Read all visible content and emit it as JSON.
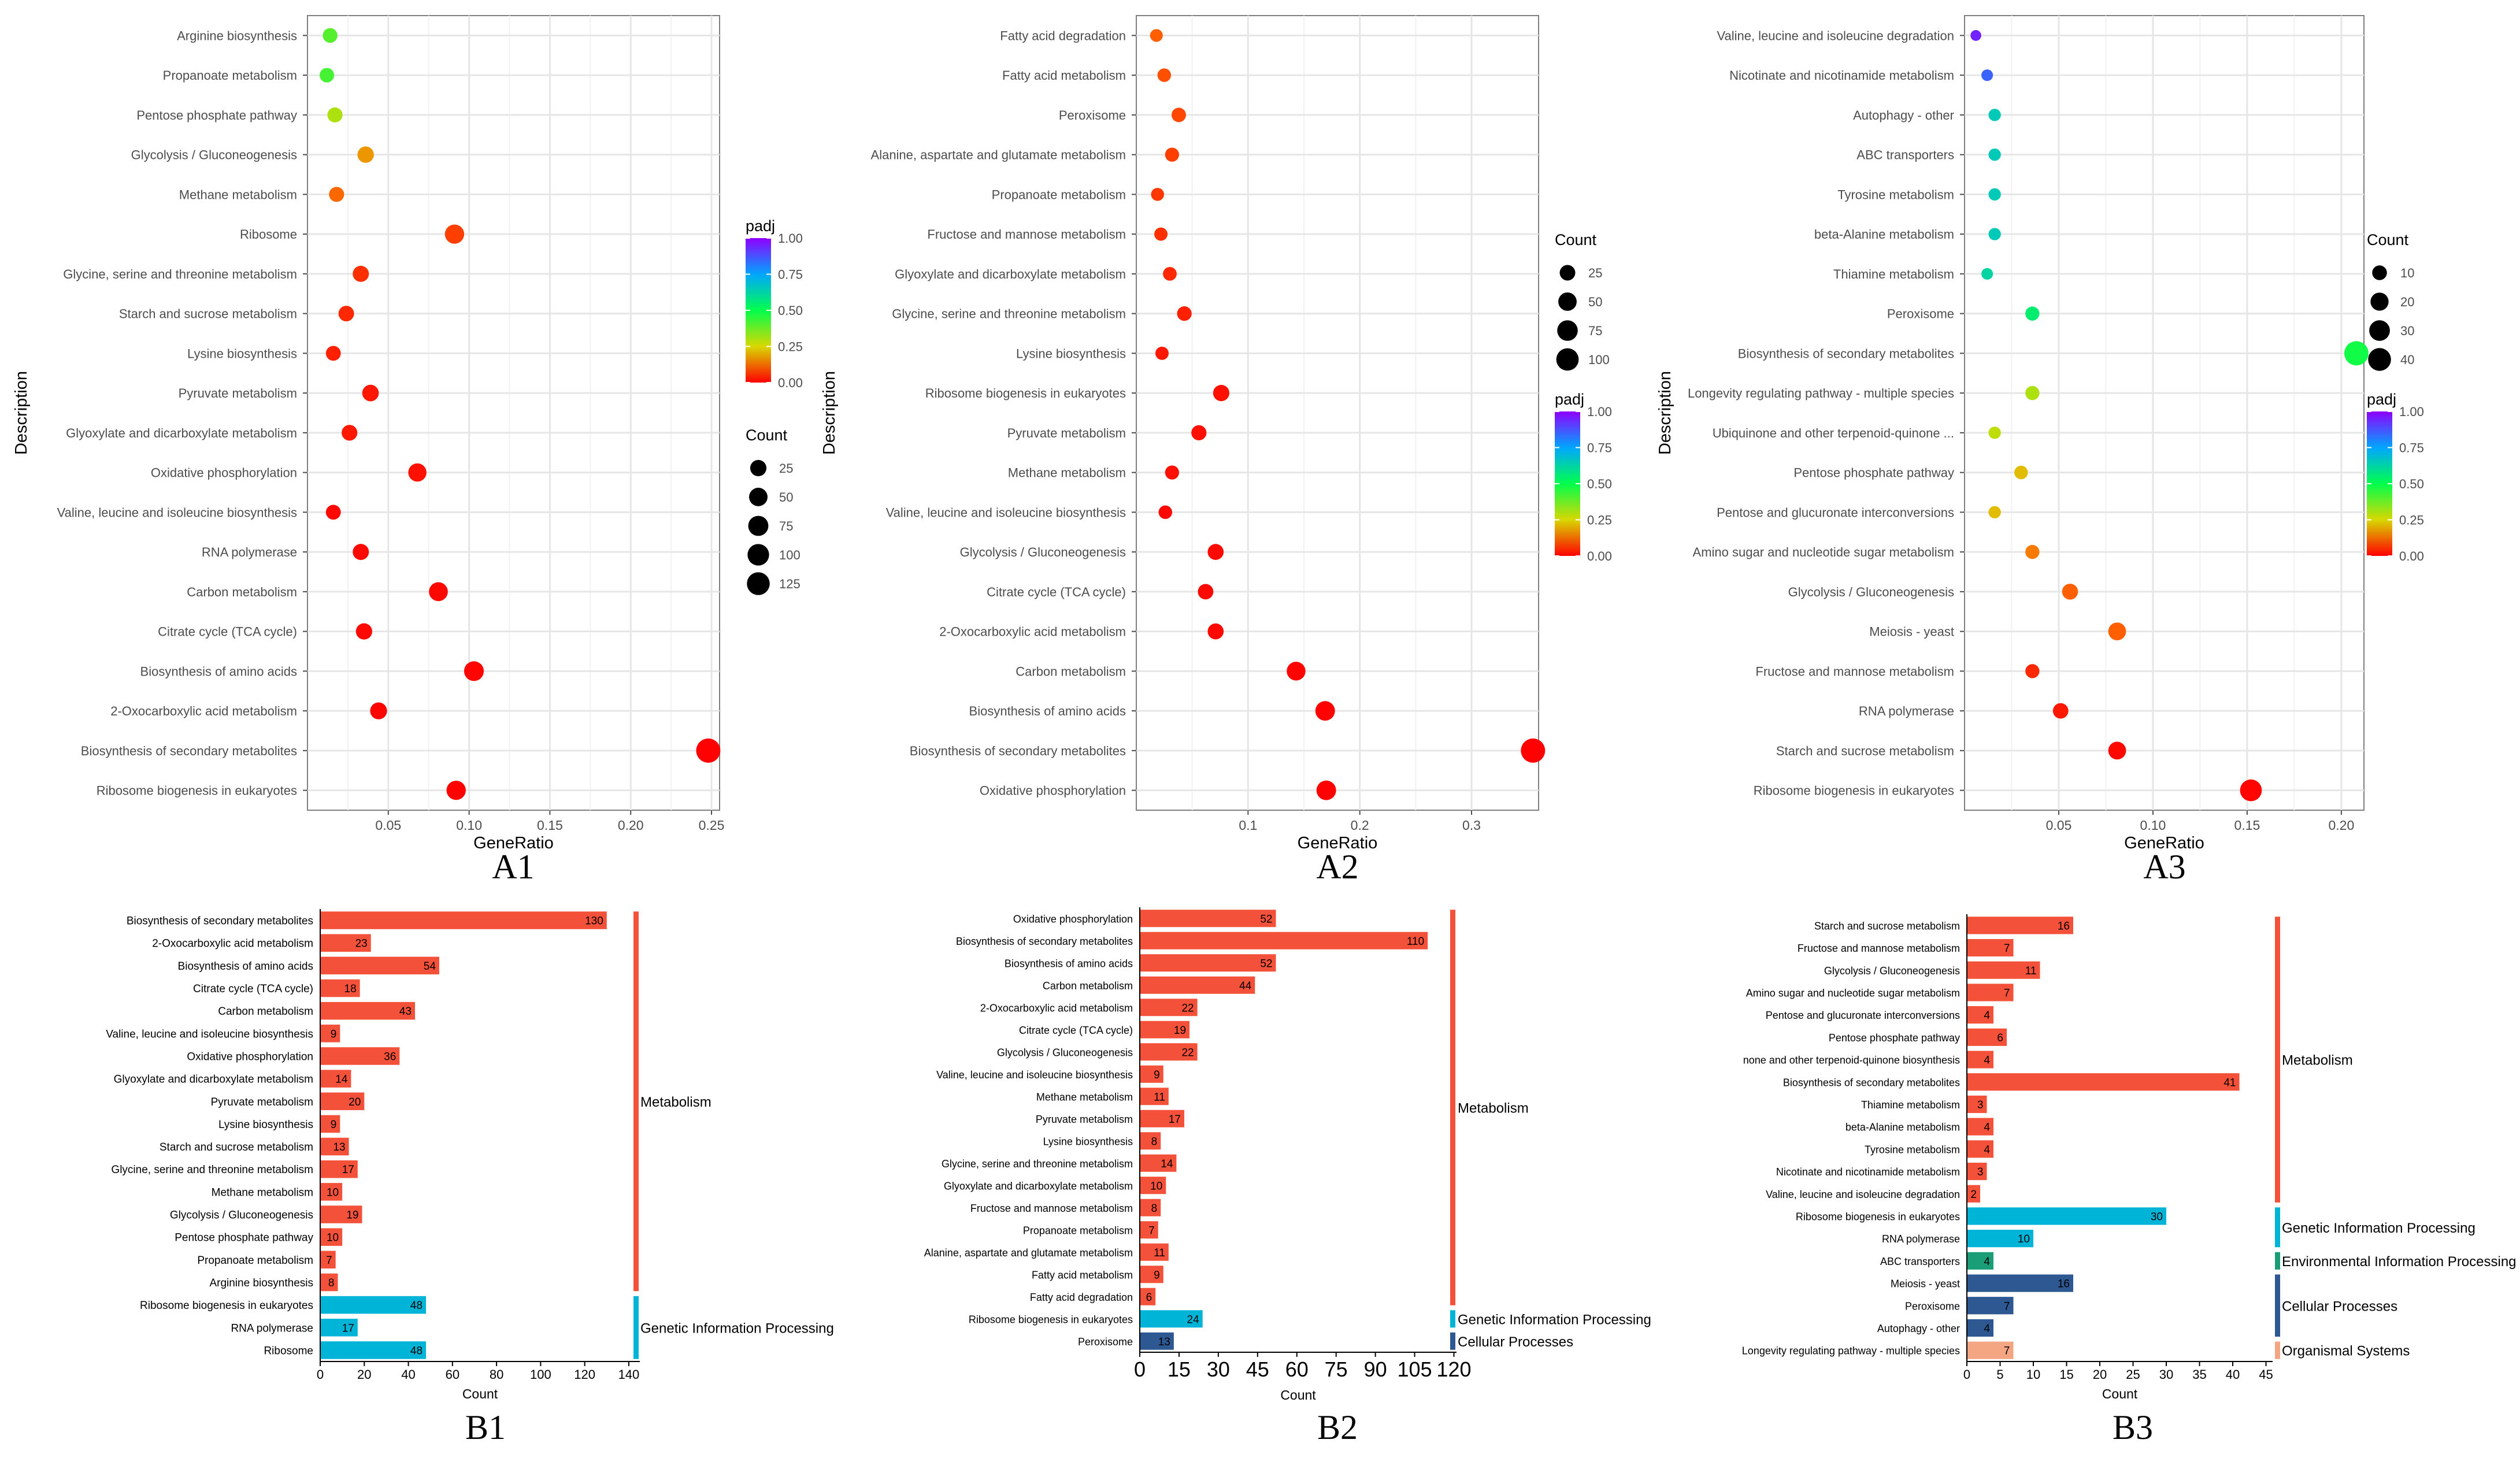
{
  "chart_data": [
    {
      "id": "A1",
      "type": "scatter",
      "label": "A1",
      "xlabel": "GeneRatio",
      "ylabel": "Description",
      "xlim": [
        0.0,
        0.255
      ],
      "xticks": [
        0.05,
        0.1,
        0.15,
        0.2,
        0.25
      ],
      "xtick_labels": [
        "0.05",
        "0.10",
        "0.15",
        "0.20",
        "0.25"
      ],
      "categories": [
        "Arginine biosynthesis",
        "Propanoate metabolism",
        "Pentose phosphate pathway",
        "Glycolysis / Gluconeogenesis",
        "Methane metabolism",
        "Ribosome",
        "Glycine, serine and threonine metabolism",
        "Starch and sucrose metabolism",
        "Lysine biosynthesis",
        "Pyruvate metabolism",
        "Glyoxylate and dicarboxylate metabolism",
        "Oxidative phosphorylation",
        "Valine, leucine and isoleucine biosynthesis",
        "RNA polymerase",
        "Carbon metabolism",
        "Citrate cycle (TCA cycle)",
        "Biosynthesis of amino acids",
        "2-Oxocarboxylic acid metabolism",
        "Biosynthesis of secondary metabolites",
        "Ribosome biogenesis in eukaryotes"
      ],
      "x": [
        0.014,
        0.012,
        0.017,
        0.036,
        0.018,
        0.091,
        0.033,
        0.024,
        0.016,
        0.039,
        0.026,
        0.068,
        0.016,
        0.033,
        0.081,
        0.035,
        0.103,
        0.044,
        0.248,
        0.092
      ],
      "count": [
        8,
        7,
        10,
        19,
        10,
        48,
        17,
        13,
        9,
        20,
        14,
        36,
        9,
        17,
        43,
        18,
        54,
        23,
        130,
        48
      ],
      "padj": [
        0.4,
        0.42,
        0.3,
        0.18,
        0.13,
        0.08,
        0.06,
        0.05,
        0.04,
        0.03,
        0.03,
        0.02,
        0.01,
        0.01,
        0.01,
        0.01,
        0.005,
        0.005,
        0.002,
        0.003
      ],
      "legend_color": {
        "title": "padj",
        "ticks": [
          "1.00",
          "0.75",
          "0.50",
          "0.25",
          "0.00"
        ]
      },
      "legend_size": {
        "title": "Count",
        "labels": [
          "25",
          "50",
          "75",
          "100",
          "125"
        ],
        "values": [
          25,
          50,
          75,
          100,
          125
        ]
      },
      "legend_order": "color-first"
    },
    {
      "id": "A2",
      "type": "scatter",
      "label": "A2",
      "xlabel": "GeneRatio",
      "ylabel": "Description",
      "xlim": [
        0.0,
        0.36
      ],
      "xticks": [
        0.1,
        0.2,
        0.3
      ],
      "xtick_labels": [
        "0.1",
        "0.2",
        "0.3"
      ],
      "categories": [
        "Fatty acid degradation",
        "Fatty acid metabolism",
        "Peroxisome",
        "Alanine, aspartate and glutamate metabolism",
        "Propanoate metabolism",
        "Fructose and mannose metabolism",
        "Glyoxylate and dicarboxylate metabolism",
        "Glycine, serine and threonine metabolism",
        "Lysine biosynthesis",
        "Ribosome biogenesis in eukaryotes",
        "Pyruvate metabolism",
        "Methane metabolism",
        "Valine, leucine and isoleucine biosynthesis",
        "Glycolysis / Gluconeogenesis",
        "Citrate cycle (TCA cycle)",
        "2-Oxocarboxylic acid metabolism",
        "Carbon metabolism",
        "Biosynthesis of amino acids",
        "Biosynthesis of secondary metabolites",
        "Oxidative phosphorylation"
      ],
      "x": [
        0.018,
        0.025,
        0.038,
        0.032,
        0.019,
        0.022,
        0.03,
        0.043,
        0.023,
        0.076,
        0.056,
        0.032,
        0.026,
        0.071,
        0.062,
        0.071,
        0.143,
        0.169,
        0.355,
        0.17
      ],
      "count": [
        6,
        9,
        13,
        11,
        7,
        8,
        10,
        14,
        8,
        24,
        17,
        11,
        9,
        22,
        19,
        22,
        44,
        52,
        110,
        52
      ],
      "padj": [
        0.12,
        0.1,
        0.09,
        0.08,
        0.07,
        0.06,
        0.05,
        0.04,
        0.03,
        0.02,
        0.02,
        0.02,
        0.01,
        0.01,
        0.01,
        0.01,
        0.005,
        0.003,
        0.002,
        0.003
      ],
      "legend_color": {
        "title": "padj",
        "ticks": [
          "1.00",
          "0.75",
          "0.50",
          "0.25",
          "0.00"
        ]
      },
      "legend_size": {
        "title": "Count",
        "labels": [
          "25",
          "50",
          "75",
          "100"
        ],
        "values": [
          25,
          50,
          75,
          100
        ]
      },
      "legend_order": "size-first"
    },
    {
      "id": "A3",
      "type": "scatter",
      "label": "A3",
      "xlabel": "GeneRatio",
      "ylabel": "Description",
      "xlim": [
        0.0,
        0.212
      ],
      "xticks": [
        0.05,
        0.1,
        0.15,
        0.2
      ],
      "xtick_labels": [
        "0.05",
        "0.10",
        "0.15",
        "0.20"
      ],
      "categories": [
        "Valine, leucine and isoleucine degradation",
        "Nicotinate and nicotinamide metabolism",
        "Autophagy - other",
        "ABC transporters",
        "Tyrosine metabolism",
        "beta-Alanine metabolism",
        "Thiamine metabolism",
        "Peroxisome",
        "Biosynthesis of secondary metabolites",
        "Longevity regulating pathway - multiple species",
        "Ubiquinone and other terpenoid-quinone ...",
        "Pentose phosphate pathway",
        "Pentose and glucuronate interconversions",
        "Amino sugar and nucleotide sugar metabolism",
        "Glycolysis / Gluconeogenesis",
        "Meiosis - yeast",
        "Fructose and mannose metabolism",
        "RNA polymerase",
        "Starch and sucrose metabolism",
        "Ribosome biogenesis in eukaryotes"
      ],
      "x": [
        0.006,
        0.012,
        0.016,
        0.016,
        0.016,
        0.016,
        0.012,
        0.036,
        0.208,
        0.036,
        0.016,
        0.03,
        0.016,
        0.036,
        0.056,
        0.081,
        0.036,
        0.051,
        0.081,
        0.152
      ],
      "count": [
        2,
        3,
        4,
        4,
        4,
        4,
        3,
        7,
        41,
        7,
        4,
        6,
        4,
        7,
        11,
        16,
        7,
        10,
        16,
        30
      ],
      "padj": [
        0.95,
        0.85,
        0.65,
        0.65,
        0.65,
        0.65,
        0.62,
        0.55,
        0.48,
        0.3,
        0.28,
        0.22,
        0.22,
        0.15,
        0.12,
        0.12,
        0.05,
        0.03,
        0.01,
        0.005
      ],
      "legend_color": {
        "title": "padj",
        "ticks": [
          "1.00",
          "0.75",
          "0.50",
          "0.25",
          "0.00"
        ]
      },
      "legend_size": {
        "title": "Count",
        "labels": [
          "10",
          "20",
          "30",
          "40"
        ],
        "values": [
          10,
          20,
          30,
          40
        ]
      },
      "legend_order": "size-first"
    },
    {
      "id": "B1",
      "type": "bar",
      "orientation": "horizontal",
      "label": "B1",
      "xlabel": "Count",
      "xlim": [
        0,
        145
      ],
      "xticks": [
        0,
        20,
        40,
        60,
        80,
        100,
        120,
        140
      ],
      "xtick_labels": [
        "0",
        "20",
        "40",
        "60",
        "80",
        "100",
        "120",
        "140"
      ],
      "categories": [
        "Biosynthesis of secondary metabolites",
        "2-Oxocarboxylic acid metabolism",
        "Biosynthesis of amino acids",
        "Citrate cycle (TCA cycle)",
        "Carbon metabolism",
        "Valine, leucine and isoleucine biosynthesis",
        "Oxidative phosphorylation",
        "Glyoxylate and dicarboxylate metabolism",
        "Pyruvate metabolism",
        "Lysine biosynthesis",
        "Starch and sucrose metabolism",
        "Glycine, serine and threonine metabolism",
        "Methane metabolism",
        "Glycolysis / Gluconeogenesis",
        "Pentose phosphate pathway",
        "Propanoate metabolism",
        "Arginine biosynthesis",
        "Ribosome biogenesis in eukaryotes",
        "RNA polymerase",
        "Ribosome"
      ],
      "values": [
        130,
        23,
        54,
        18,
        43,
        9,
        36,
        14,
        20,
        9,
        13,
        17,
        10,
        19,
        10,
        7,
        8,
        48,
        17,
        48
      ],
      "value_labels": [
        "130",
        "23",
        "54",
        "18",
        "43",
        "9",
        "36",
        "14",
        "20",
        "9",
        "13",
        "17",
        "10",
        "19",
        "10",
        "7",
        "8",
        "48",
        "17",
        "48"
      ],
      "groups": [
        {
          "name": "Metabolism",
          "start": 0,
          "end": 16,
          "color": "#F4513A"
        },
        {
          "name": "Genetic Information Processing",
          "start": 17,
          "end": 19,
          "color": "#00B4D8"
        }
      ]
    },
    {
      "id": "B2",
      "type": "bar",
      "orientation": "horizontal",
      "label": "B2",
      "xlabel": "Count",
      "xlim": [
        0,
        121
      ],
      "xticks": [
        0,
        15,
        30,
        45,
        60,
        75,
        90,
        105,
        120
      ],
      "xtick_labels": [
        "0",
        "15",
        "30",
        "45",
        "60",
        "75",
        "90",
        "105",
        "120"
      ],
      "categories": [
        "Oxidative phosphorylation",
        "Biosynthesis of secondary metabolites",
        "Biosynthesis of amino acids",
        "Carbon metabolism",
        "2-Oxocarboxylic acid metabolism",
        "Citrate cycle (TCA cycle)",
        "Glycolysis / Gluconeogenesis",
        "Valine, leucine and isoleucine biosynthesis",
        "Methane metabolism",
        "Pyruvate metabolism",
        "Lysine biosynthesis",
        "Glycine, serine and threonine metabolism",
        "Glyoxylate and dicarboxylate metabolism",
        "Fructose and mannose metabolism",
        "Propanoate metabolism",
        "Alanine, aspartate and glutamate metabolism",
        "Fatty acid metabolism",
        "Fatty acid degradation",
        "Ribosome biogenesis in eukaryotes",
        "Peroxisome"
      ],
      "values": [
        52,
        110,
        52,
        44,
        22,
        19,
        22,
        9,
        11,
        17,
        8,
        14,
        10,
        8,
        7,
        11,
        9,
        6,
        24,
        13
      ],
      "value_labels": [
        "52",
        "110",
        "52",
        "44",
        "22",
        "19",
        "22",
        "9",
        "11",
        "17",
        "8",
        "14",
        "10",
        "8",
        "7",
        "11",
        "9",
        "6",
        "24",
        "13"
      ],
      "groups": [
        {
          "name": "Metabolism",
          "start": 0,
          "end": 17,
          "color": "#F4513A"
        },
        {
          "name": "Genetic Information Processing",
          "start": 18,
          "end": 18,
          "color": "#00B4D8"
        },
        {
          "name": "Cellular Processes",
          "start": 19,
          "end": 19,
          "color": "#2E5891"
        }
      ]
    },
    {
      "id": "B3",
      "type": "bar",
      "orientation": "horizontal",
      "label": "B3",
      "xlabel": "Count",
      "xlim": [
        0,
        46
      ],
      "xticks": [
        0,
        5,
        10,
        15,
        20,
        25,
        30,
        35,
        40,
        45
      ],
      "xtick_labels": [
        "0",
        "5",
        "10",
        "15",
        "20",
        "25",
        "30",
        "35",
        "40",
        "45"
      ],
      "categories": [
        "Starch and sucrose metabolism",
        "Fructose and mannose metabolism",
        "Glycolysis / Gluconeogenesis",
        "Amino sugar and nucleotide sugar metabolism",
        "Pentose and glucuronate interconversions",
        "Pentose phosphate pathway",
        "none and other terpenoid-quinone biosynthesis",
        "Biosynthesis of secondary metabolites",
        "Thiamine metabolism",
        "beta-Alanine metabolism",
        "Tyrosine metabolism",
        "Nicotinate and nicotinamide metabolism",
        "Valine, leucine and isoleucine degradation",
        "Ribosome biogenesis in eukaryotes",
        "RNA polymerase",
        "ABC transporters",
        "Meiosis - yeast",
        "Peroxisome",
        "Autophagy - other",
        "Longevity regulating pathway - multiple species"
      ],
      "values": [
        16,
        7,
        11,
        7,
        4,
        6,
        4,
        41,
        3,
        4,
        4,
        3,
        2,
        30,
        10,
        4,
        16,
        7,
        4,
        7
      ],
      "value_labels": [
        "16",
        "7",
        "11",
        "7",
        "4",
        "6",
        "4",
        "41",
        "3",
        "4",
        "4",
        "3",
        "2",
        "30",
        "10",
        "4",
        "16",
        "7",
        "4",
        "7"
      ],
      "groups": [
        {
          "name": "Metabolism",
          "start": 0,
          "end": 12,
          "color": "#F4513A"
        },
        {
          "name": "Genetic Information Processing",
          "start": 13,
          "end": 14,
          "color": "#00B4D8"
        },
        {
          "name": "Environmental Information Processing",
          "start": 15,
          "end": 15,
          "color": "#1A9E77"
        },
        {
          "name": "Cellular Processes",
          "start": 16,
          "end": 18,
          "color": "#2E5891"
        },
        {
          "name": "Organismal Systems",
          "start": 19,
          "end": 19,
          "color": "#F4A582"
        }
      ]
    }
  ]
}
